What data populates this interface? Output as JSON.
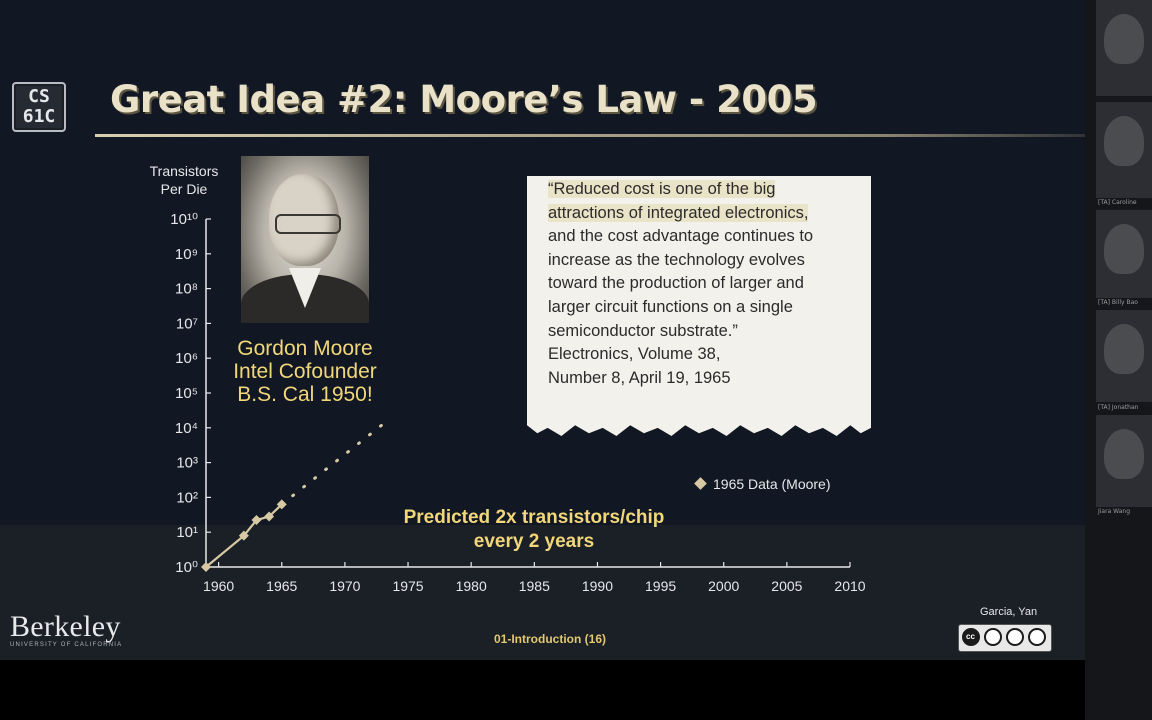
{
  "slide": {
    "logo_line1": "CS",
    "logo_line2": "61C",
    "title": "Great Idea #2: Moore’s Law - 2005",
    "y_axis_title_line1": "Transistors",
    "y_axis_title_line2": "Per Die",
    "caption": [
      "Gordon Moore",
      "Intel Cofounder",
      "B.S. Cal 1950!"
    ],
    "quote_lines": [
      "“Reduced cost is one of the big",
      "attractions of integrated electronics,",
      "and the cost advantage continues to",
      "increase as the technology evolves",
      "toward the production of larger and",
      "larger circuit functions on a single",
      "semiconductor substrate.”"
    ],
    "source_lines": [
      "Electronics, Volume 38,",
      "Number 8, April 19, 1965"
    ],
    "legend_label": "1965 Data (Moore)",
    "prediction_lines": [
      "Predicted 2x transistors/chip",
      "every 2 years"
    ],
    "footer": {
      "brand": "Berkeley",
      "brand_sub": "UNIVERSITY OF CALIFORNIA",
      "center": "01-Introduction (16)",
      "authors": "Garcia, Yan"
    }
  },
  "sidebar": {
    "names": [
      "[TA] Caroline",
      "[TA] Billy Bao",
      "[TA] Jonathan",
      "Jiara Wang"
    ]
  },
  "chart_data": {
    "type": "scatter",
    "x_ticks": [
      1960,
      1965,
      1970,
      1975,
      1980,
      1985,
      1990,
      1995,
      2000,
      2005,
      2010
    ],
    "y_ticks": [
      0,
      1,
      2,
      3,
      4,
      5,
      6,
      7,
      8,
      9,
      10
    ],
    "y_tick_labels": [
      "10⁰",
      "10¹",
      "10²",
      "10³",
      "10⁴",
      "10⁵",
      "10⁶",
      "10⁷",
      "10⁸",
      "10⁹",
      "10¹⁰"
    ],
    "xlim": [
      1959,
      2010
    ],
    "ylim": [
      0,
      10
    ],
    "y_scale": "log10",
    "points": [
      [
        1959,
        0
      ],
      [
        1962,
        0.9
      ],
      [
        1963,
        1.35
      ],
      [
        1964,
        1.45
      ],
      [
        1965,
        1.8
      ]
    ],
    "trend_from": [
      1965,
      1.8
    ],
    "trend_to": [
      1973,
      4.1
    ],
    "marker_color": "#d6c9a3"
  }
}
